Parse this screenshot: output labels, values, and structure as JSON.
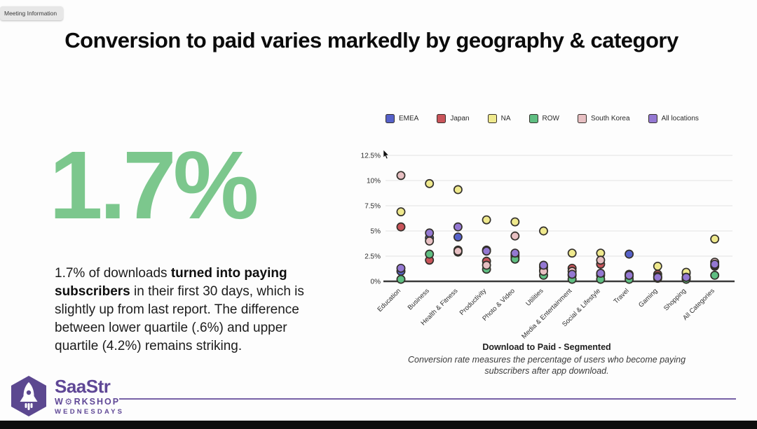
{
  "meeting_badge": "Meeting Information",
  "title": "Conversion to paid varies markedly by geography & category",
  "stat": {
    "value": "1.7%"
  },
  "paragraph": {
    "pre": "1.7% of downloads ",
    "bold": "turned into paying subscribers",
    "post": " in their first 30 days, which is slightly up from last report. The difference between lower quartile (.6%) and upper quartile (4.2%) remains striking."
  },
  "colors": {
    "stat_green": "#7cc78d",
    "accent_purple": "#5f4796",
    "axis_line": "#3a3a3a",
    "gridline": "#e9e9e9",
    "dot_border": "#33302b"
  },
  "footer": {
    "brand": "SaaStr",
    "workshop_pre": "W",
    "gear_icon": "⚙",
    "workshop_post": "RKSHOP",
    "wednesdays": "WEDNESDAYS"
  },
  "chart_data": {
    "type": "scatter",
    "title": "Download to Paid - Segmented",
    "subtitle": "Conversion rate measures the percentage of users who become paying subscribers after app download.",
    "ylim": [
      0,
      12.5
    ],
    "yticks": [
      0,
      2.5,
      5,
      7.5,
      10,
      12.5
    ],
    "ytick_labels": [
      "0%",
      "2.5%",
      "5%",
      "7.5%",
      "10%",
      "12.5%"
    ],
    "grid": true,
    "legend_position": "top",
    "categories": [
      "Education",
      "Business",
      "Health & Fitness",
      "Productivity",
      "Photo & Video",
      "Utilities",
      "Media & Entertainment",
      "Social & Lifestyle",
      "Travel",
      "Gaming",
      "Shopping",
      "All Categories"
    ],
    "series": [
      {
        "name": "EMEA",
        "color": "#5661c9",
        "values": [
          1.0,
          4.3,
          4.4,
          3.1,
          2.6,
          1.4,
          0.6,
          0.6,
          2.7,
          0.4,
          0.3,
          1.5
        ]
      },
      {
        "name": "Japan",
        "color": "#c9545a",
        "values": [
          5.4,
          2.1,
          3.1,
          2.0,
          2.4,
          1.1,
          1.3,
          1.7,
          0.5,
          0.7,
          0.8,
          1.6
        ]
      },
      {
        "name": "NA",
        "color": "#efe98d",
        "values": [
          6.9,
          9.7,
          9.1,
          6.1,
          5.9,
          5.0,
          2.8,
          2.8,
          0.7,
          1.5,
          0.9,
          4.2
        ]
      },
      {
        "name": "ROW",
        "color": "#5fbe82",
        "values": [
          0.2,
          2.7,
          2.9,
          1.2,
          2.2,
          0.6,
          0.2,
          0.2,
          0.2,
          0.3,
          0.2,
          0.6
        ]
      },
      {
        "name": "South Korea",
        "color": "#e7bfc2",
        "values": [
          10.5,
          4.0,
          3.0,
          1.6,
          4.5,
          1.0,
          1.0,
          2.1,
          0.6,
          0.5,
          0.4,
          1.9
        ]
      },
      {
        "name": "All locations",
        "color": "#9478d2",
        "values": [
          1.3,
          4.8,
          5.4,
          3.0,
          2.8,
          1.6,
          0.7,
          0.8,
          0.6,
          0.4,
          0.4,
          1.7
        ]
      }
    ]
  }
}
